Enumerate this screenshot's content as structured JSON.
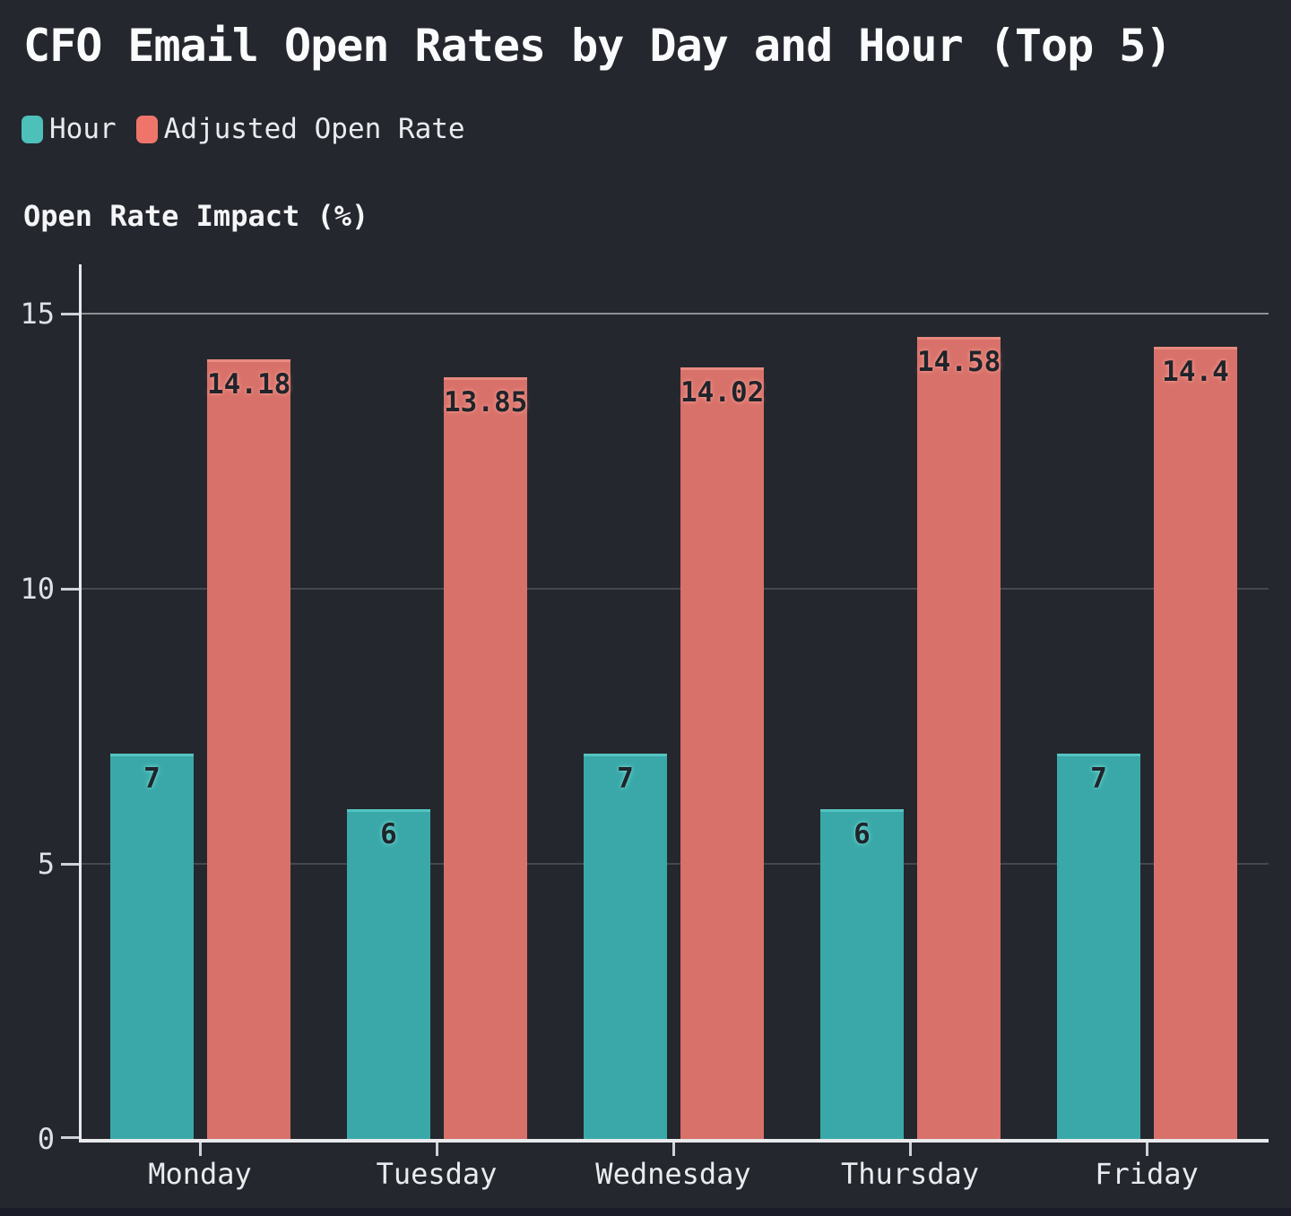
{
  "page": {
    "background": "#25272e",
    "footer_strip_color": "#1a1d29"
  },
  "title": "CFO Email Open Rates by Day and Hour (Top 5)",
  "legend": [
    {
      "label": "Hour",
      "color": "#4ec0ba"
    },
    {
      "label": "Adjusted Open Rate",
      "color": "#ef756b"
    }
  ],
  "axis_title": "Open Rate Impact (%)",
  "chart_data": {
    "type": "bar",
    "title": "CFO Email Open Rates by Day and Hour (Top 5)",
    "categories": [
      "Monday",
      "Tuesday",
      "Wednesday",
      "Thursday",
      "Friday"
    ],
    "series": [
      {
        "name": "Hour",
        "values": [
          7,
          6,
          7,
          6,
          7
        ],
        "labels": [
          "7",
          "6",
          "7",
          "6",
          "7"
        ],
        "color": "#3aa8a8",
        "edge_color": "#54c4c0",
        "label_glow": "#6fd6d0"
      },
      {
        "name": "Adjusted Open Rate",
        "values": [
          14.18,
          13.85,
          14.02,
          14.58,
          14.4
        ],
        "labels": [
          "14.18",
          "13.85",
          "14.02",
          "14.58",
          "14.4"
        ],
        "color": "#d7716a",
        "edge_color": "#e98a7f",
        "label_glow": "#f79c8e"
      }
    ],
    "xlabel": "",
    "ylabel": "Open Rate Impact (%)",
    "yticks": [
      0,
      5,
      10,
      15
    ],
    "ylim": [
      0,
      15.9
    ],
    "grid": true,
    "grid_color": "#46484f",
    "top_grid_color": "#8d9095",
    "axis_color": "#e8eaec",
    "tick_color": "#cfd3d7",
    "legend_position": "top-left",
    "bar_label_position": "inside-top"
  }
}
